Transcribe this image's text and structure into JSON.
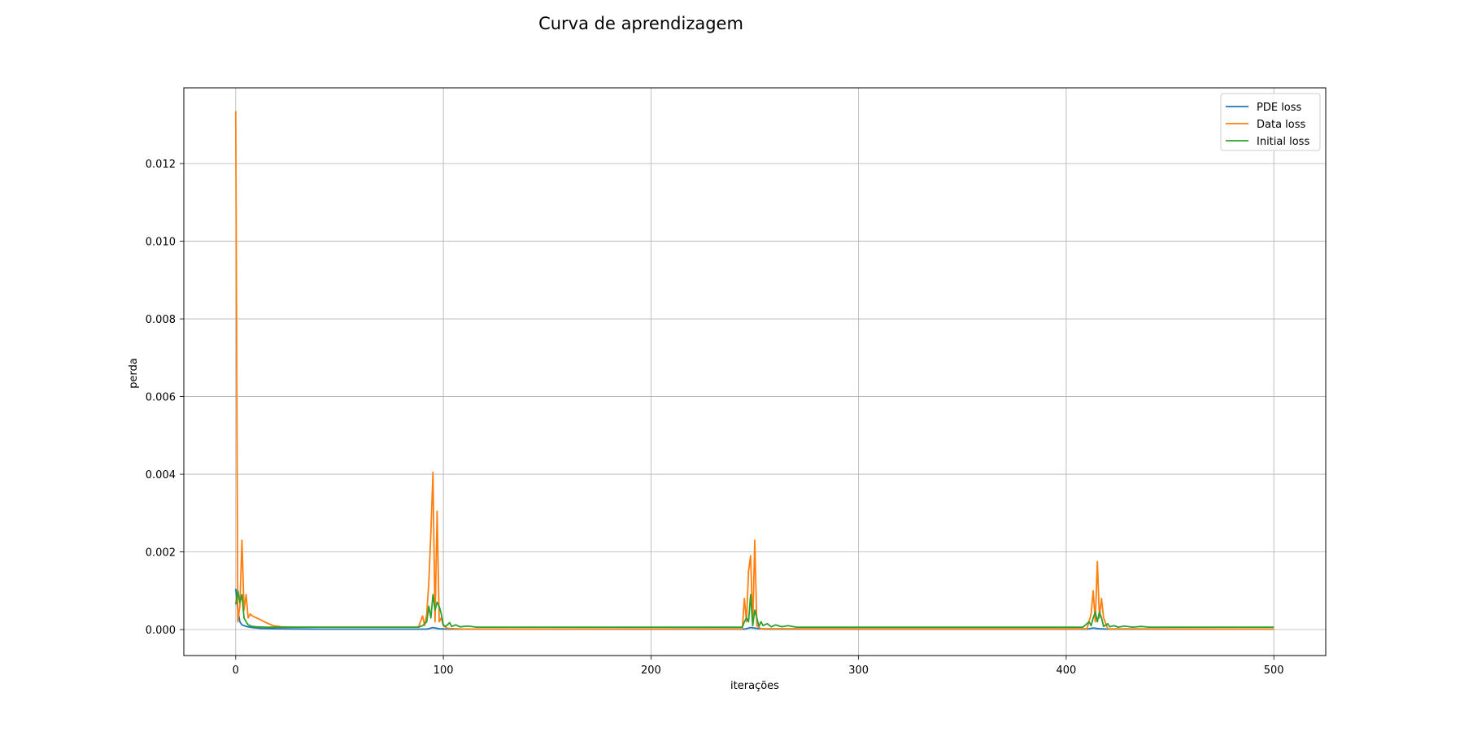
{
  "chart_data": {
    "type": "line",
    "title": "Curva de aprendizagem",
    "xlabel": "iterações",
    "ylabel": "perda",
    "xlim": [
      -25,
      525
    ],
    "ylim": [
      -0.00067,
      0.01395
    ],
    "xticks": [
      0,
      100,
      200,
      300,
      400,
      500
    ],
    "yticks": [
      0.0,
      0.002,
      0.004,
      0.006,
      0.008,
      0.01,
      0.012
    ],
    "ytick_labels": [
      "0.000",
      "0.002",
      "0.004",
      "0.006",
      "0.008",
      "0.010",
      "0.012"
    ],
    "grid": true,
    "legend_position": "top-right",
    "series": [
      {
        "name": "PDE loss",
        "color": "#1f77b4",
        "points": [
          [
            0,
            0.00105
          ],
          [
            1,
            0.0005
          ],
          [
            2,
            0.0002
          ],
          [
            3,
            0.00012
          ],
          [
            5,
            8e-05
          ],
          [
            8,
            5e-05
          ],
          [
            12,
            3e-05
          ],
          [
            20,
            2e-05
          ],
          [
            40,
            1e-05
          ],
          [
            92,
            1e-05
          ],
          [
            95,
            5e-05
          ],
          [
            98,
            2e-05
          ],
          [
            102,
            1e-05
          ],
          [
            245,
            1e-05
          ],
          [
            248,
            5e-05
          ],
          [
            251,
            3e-05
          ],
          [
            255,
            1e-05
          ],
          [
            410,
            1e-05
          ],
          [
            413,
            4e-05
          ],
          [
            416,
            2e-05
          ],
          [
            420,
            1e-05
          ],
          [
            500,
            1e-05
          ]
        ]
      },
      {
        "name": "Data loss",
        "color": "#ff7f0e",
        "points": [
          [
            0,
            0.01335
          ],
          [
            1,
            0.0002
          ],
          [
            2,
            0.0006
          ],
          [
            3,
            0.0023
          ],
          [
            4,
            0.0005
          ],
          [
            5,
            0.0009
          ],
          [
            6,
            0.0003
          ],
          [
            7,
            0.0004
          ],
          [
            8,
            0.00035
          ],
          [
            10,
            0.0003
          ],
          [
            12,
            0.00025
          ],
          [
            15,
            0.00017
          ],
          [
            18,
            0.0001
          ],
          [
            22,
            7e-05
          ],
          [
            30,
            6e-05
          ],
          [
            88,
            6e-05
          ],
          [
            90,
            0.00035
          ],
          [
            91,
            0.0001
          ],
          [
            92,
            0.0004
          ],
          [
            93,
            0.0012
          ],
          [
            94,
            0.0025
          ],
          [
            95,
            0.00405
          ],
          [
            96,
            0.0002
          ],
          [
            97,
            0.00305
          ],
          [
            98,
            0.0002
          ],
          [
            99,
            0.0003
          ],
          [
            100,
            0.0001
          ],
          [
            102,
            3e-05
          ],
          [
            110,
            1e-05
          ],
          [
            244,
            2e-05
          ],
          [
            245,
            0.0008
          ],
          [
            246,
            0.0002
          ],
          [
            247,
            0.0015
          ],
          [
            248,
            0.0019
          ],
          [
            249,
            0.0001
          ],
          [
            250,
            0.0023
          ],
          [
            251,
            0.0001
          ],
          [
            253,
            2e-05
          ],
          [
            410,
            2e-05
          ],
          [
            412,
            0.0004
          ],
          [
            413,
            0.001
          ],
          [
            414,
            0.0002
          ],
          [
            415,
            0.00175
          ],
          [
            416,
            0.0003
          ],
          [
            417,
            0.0008
          ],
          [
            418,
            0.0003
          ],
          [
            420,
            2e-05
          ],
          [
            500,
            1e-05
          ]
        ]
      },
      {
        "name": "Initial loss",
        "color": "#2ca02c",
        "points": [
          [
            0,
            0.00065
          ],
          [
            1,
            0.001
          ],
          [
            2,
            0.0007
          ],
          [
            3,
            0.0009
          ],
          [
            4,
            0.0003
          ],
          [
            5,
            0.0002
          ],
          [
            6,
            0.00012
          ],
          [
            8,
            8e-05
          ],
          [
            10,
            7e-05
          ],
          [
            15,
            6e-05
          ],
          [
            20,
            6e-05
          ],
          [
            88,
            6e-05
          ],
          [
            90,
            0.0001
          ],
          [
            92,
            0.0002
          ],
          [
            93,
            0.0006
          ],
          [
            94,
            0.0003
          ],
          [
            95,
            0.0009
          ],
          [
            96,
            0.0005
          ],
          [
            97,
            0.0007
          ],
          [
            98,
            0.0006
          ],
          [
            99,
            0.0004
          ],
          [
            100,
            0.00012
          ],
          [
            101,
            8e-05
          ],
          [
            102,
            0.00012
          ],
          [
            103,
            0.00018
          ],
          [
            104,
            8e-05
          ],
          [
            106,
            0.00012
          ],
          [
            108,
            7e-05
          ],
          [
            112,
            9e-05
          ],
          [
            116,
            6e-05
          ],
          [
            244,
            6e-05
          ],
          [
            245,
            0.0002
          ],
          [
            246,
            0.0003
          ],
          [
            247,
            0.0002
          ],
          [
            248,
            0.0009
          ],
          [
            249,
            0.0001
          ],
          [
            250,
            0.0005
          ],
          [
            251,
            0.0003
          ],
          [
            252,
            8e-05
          ],
          [
            253,
            0.0002
          ],
          [
            254,
            0.0001
          ],
          [
            256,
            0.00015
          ],
          [
            258,
            7e-05
          ],
          [
            260,
            0.00012
          ],
          [
            263,
            7e-05
          ],
          [
            266,
            0.0001
          ],
          [
            270,
            6e-05
          ],
          [
            408,
            6e-05
          ],
          [
            410,
            0.00015
          ],
          [
            411,
            0.0002
          ],
          [
            412,
            0.0001
          ],
          [
            413,
            0.0003
          ],
          [
            414,
            0.00045
          ],
          [
            415,
            0.0002
          ],
          [
            416,
            0.00045
          ],
          [
            417,
            0.0003
          ],
          [
            418,
            8e-05
          ],
          [
            420,
            0.00015
          ],
          [
            421,
            7e-05
          ],
          [
            423,
            0.0001
          ],
          [
            425,
            6e-05
          ],
          [
            428,
            9e-05
          ],
          [
            432,
            6e-05
          ],
          [
            436,
            8e-05
          ],
          [
            440,
            6e-05
          ],
          [
            500,
            6e-05
          ]
        ]
      }
    ]
  }
}
